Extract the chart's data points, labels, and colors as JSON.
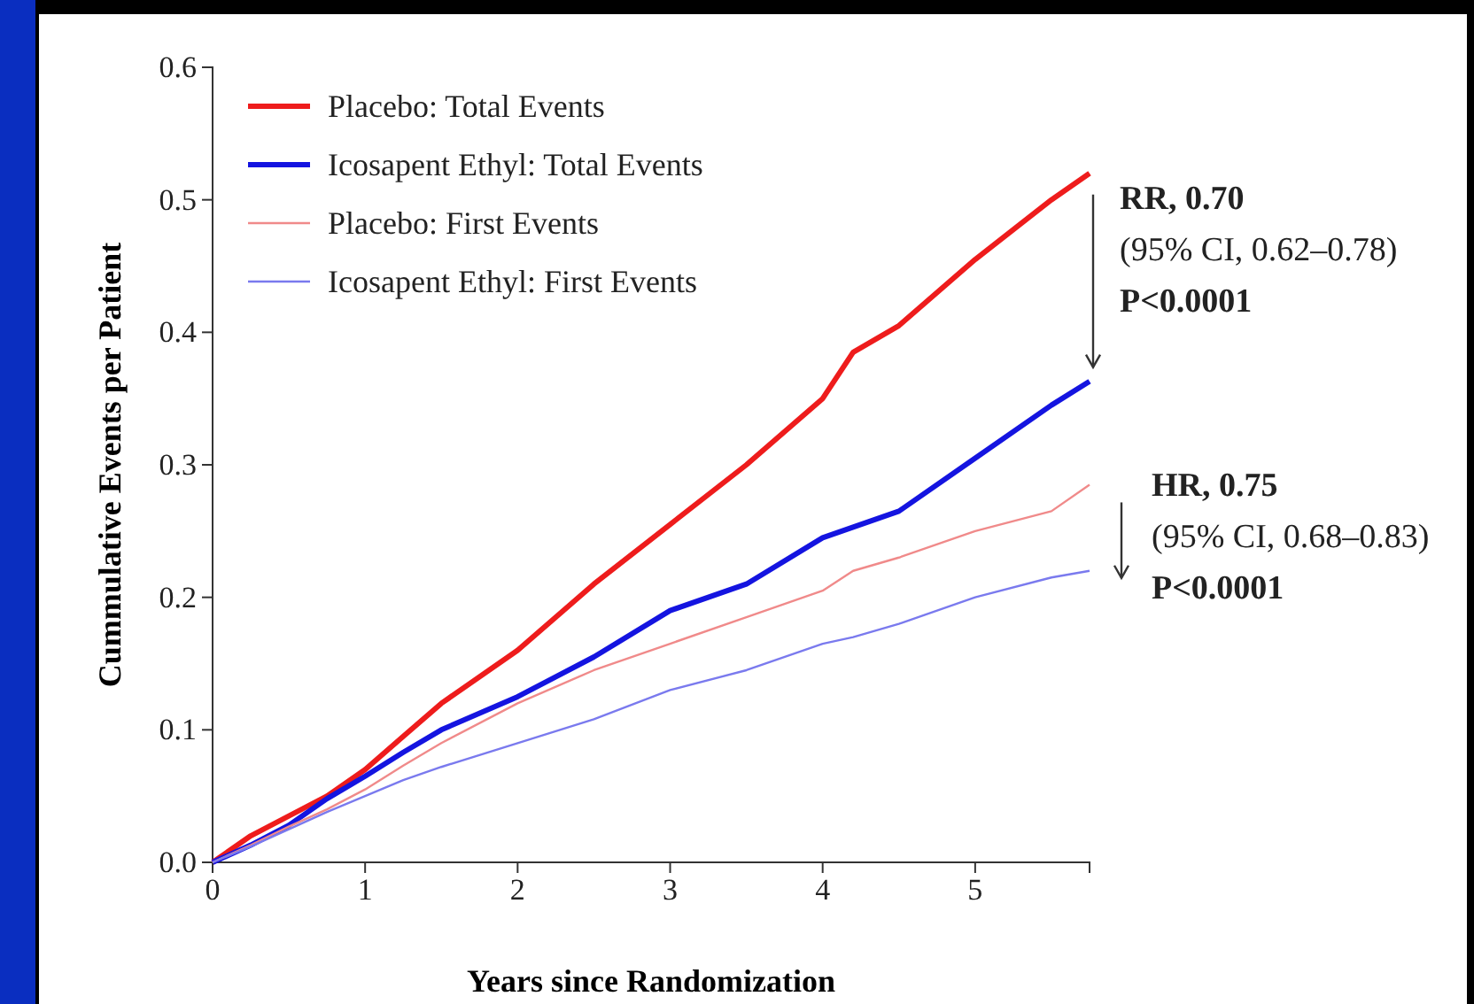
{
  "chart_data": {
    "type": "line",
    "xlabel": "Years since Randomization",
    "ylabel": "Cummulative Events per Patient",
    "xlim": [
      0,
      5.75
    ],
    "xticks": [
      0,
      1,
      2,
      3,
      4,
      5
    ],
    "ylim": [
      0,
      0.6
    ],
    "yticks": [
      {
        "value": 0,
        "label": "0.0"
      },
      {
        "value": 0.1,
        "label": "0.1"
      },
      {
        "value": 0.2,
        "label": "0.2"
      },
      {
        "value": 0.3,
        "label": "0.3"
      },
      {
        "value": 0.4,
        "label": "0.4"
      },
      {
        "value": 0.5,
        "label": "0.5"
      },
      {
        "value": 0.6,
        "label": "0.6"
      }
    ],
    "legend": "top left",
    "grid": false,
    "marker": "none",
    "line_style": "solid",
    "x": [
      0,
      0.25,
      0.5,
      0.75,
      1,
      1.25,
      1.5,
      2,
      2.5,
      3,
      3.5,
      4,
      4.2,
      4.5,
      5,
      5.5,
      5.75
    ],
    "series": [
      {
        "name": "Placebo: Total Events",
        "color": "#ee1c1c",
        "values": [
          0,
          0.02,
          0.035,
          0.05,
          0.07,
          0.095,
          0.12,
          0.16,
          0.21,
          0.255,
          0.3,
          0.35,
          0.385,
          0.405,
          0.455,
          0.5,
          0.52
        ]
      },
      {
        "name": "Icosapent Ethyl: Total Events",
        "color": "#1414e0",
        "values": [
          0,
          0.013,
          0.028,
          0.048,
          0.065,
          0.083,
          0.1,
          0.125,
          0.155,
          0.19,
          0.21,
          0.245,
          0.253,
          0.265,
          0.305,
          0.345,
          0.363
        ]
      },
      {
        "name": "Placebo: First Events",
        "color": "#f08a8a",
        "values": [
          0,
          0.013,
          0.027,
          0.04,
          0.055,
          0.073,
          0.09,
          0.12,
          0.145,
          0.165,
          0.185,
          0.205,
          0.22,
          0.23,
          0.25,
          0.265,
          0.285
        ]
      },
      {
        "name": "Icosapent Ethyl: First Events",
        "color": "#7a7aee",
        "values": [
          0,
          0.012,
          0.025,
          0.038,
          0.05,
          0.062,
          0.072,
          0.09,
          0.108,
          0.13,
          0.145,
          0.165,
          0.17,
          0.18,
          0.2,
          0.215,
          0.22
        ]
      }
    ],
    "annotations": [
      "RR, 0.70",
      "(95% CI, 0.62–0.78)",
      "P<0.0001",
      "HR, 0.75",
      "(95% CI, 0.68–0.83)",
      "P<0.0001"
    ]
  }
}
